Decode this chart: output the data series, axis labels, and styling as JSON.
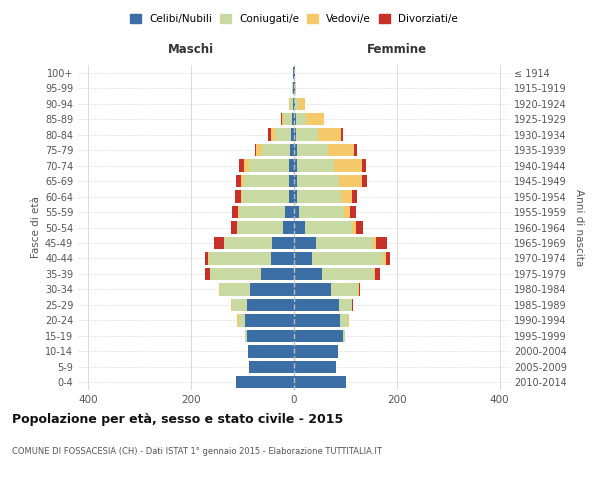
{
  "age_groups": [
    "0-4",
    "5-9",
    "10-14",
    "15-19",
    "20-24",
    "25-29",
    "30-34",
    "35-39",
    "40-44",
    "45-49",
    "50-54",
    "55-59",
    "60-64",
    "65-69",
    "70-74",
    "75-79",
    "80-84",
    "85-89",
    "90-94",
    "95-99",
    "100+"
  ],
  "birth_years": [
    "2010-2014",
    "2005-2009",
    "2000-2004",
    "1995-1999",
    "1990-1994",
    "1985-1989",
    "1980-1984",
    "1975-1979",
    "1970-1974",
    "1965-1969",
    "1960-1964",
    "1955-1959",
    "1950-1954",
    "1945-1949",
    "1940-1944",
    "1935-1939",
    "1930-1934",
    "1925-1929",
    "1920-1924",
    "1915-1919",
    "≤ 1914"
  ],
  "maschi": {
    "celibi": [
      112,
      88,
      90,
      92,
      95,
      92,
      85,
      65,
      45,
      42,
      22,
      18,
      10,
      10,
      10,
      8,
      5,
      4,
      2,
      1,
      1
    ],
    "coniugati": [
      0,
      0,
      0,
      4,
      12,
      28,
      58,
      98,
      120,
      95,
      88,
      88,
      92,
      88,
      78,
      55,
      32,
      15,
      5,
      2,
      1
    ],
    "vedovi": [
      0,
      0,
      0,
      0,
      3,
      2,
      2,
      0,
      3,
      0,
      0,
      2,
      2,
      5,
      10,
      10,
      8,
      5,
      3,
      0,
      0
    ],
    "divorziati": [
      0,
      0,
      0,
      0,
      0,
      0,
      0,
      10,
      5,
      18,
      12,
      12,
      10,
      10,
      8,
      3,
      5,
      2,
      0,
      0,
      0
    ]
  },
  "femmine": {
    "nubili": [
      102,
      82,
      85,
      95,
      90,
      87,
      72,
      55,
      35,
      42,
      22,
      10,
      5,
      5,
      5,
      5,
      4,
      3,
      2,
      1,
      1
    ],
    "coniugate": [
      0,
      0,
      0,
      5,
      15,
      25,
      52,
      100,
      138,
      112,
      90,
      88,
      87,
      82,
      72,
      62,
      42,
      20,
      5,
      2,
      0
    ],
    "vedove": [
      0,
      0,
      0,
      0,
      2,
      0,
      2,
      2,
      5,
      5,
      8,
      10,
      20,
      45,
      55,
      50,
      45,
      35,
      15,
      0,
      0
    ],
    "divorziate": [
      0,
      0,
      0,
      0,
      0,
      2,
      2,
      10,
      8,
      22,
      15,
      12,
      10,
      10,
      8,
      5,
      5,
      0,
      0,
      0,
      0
    ]
  },
  "colors": {
    "celibi_nubili": "#3A6EA5",
    "coniugati": "#C8D9A2",
    "vedovi": "#F5C96A",
    "divorziati": "#C8302A"
  },
  "title": "Popolazione per età, sesso e stato civile - 2015",
  "subtitle": "COMUNE DI FOSSACESIA (CH) - Dati ISTAT 1° gennaio 2015 - Elaborazione TUTTITALIA.IT",
  "xlabel_maschi": "Maschi",
  "xlabel_femmine": "Femmine",
  "ylabel_left": "Fasce di età",
  "ylabel_right": "Anni di nascita",
  "xlim": 420,
  "background_color": "#ffffff",
  "legend_labels": [
    "Celibi/Nubili",
    "Coniugati/e",
    "Vedovi/e",
    "Divorziati/e"
  ]
}
